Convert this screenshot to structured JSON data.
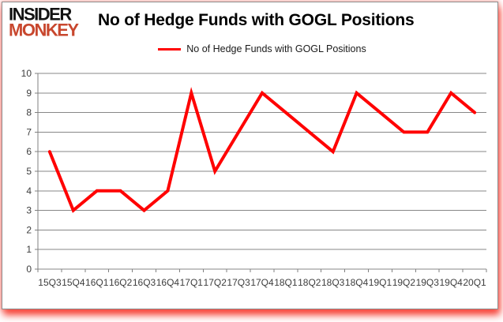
{
  "window": {
    "background": "#ffffff",
    "frame_border_color": "#8c8c8c",
    "glow_color": "#f51a0a"
  },
  "logo": {
    "line1": "INSIDER",
    "line2": "MONKEY",
    "line1_color": "#121212",
    "line2_color": "#c8472e"
  },
  "title": "No of Hedge Funds with GOGL Positions",
  "legend": {
    "label": "No of Hedge Funds with GOGL Positions",
    "marker_color": "#ff0000"
  },
  "chart_data": {
    "type": "line",
    "title": "No of Hedge Funds with GOGL Positions",
    "categories": [
      "15Q3",
      "15Q4",
      "16Q1",
      "16Q2",
      "16Q3",
      "16Q4",
      "17Q1",
      "17Q2",
      "17Q3",
      "17Q4",
      "18Q1",
      "18Q2",
      "18Q3",
      "18Q4",
      "19Q1",
      "19Q2",
      "19Q3",
      "19Q4",
      "20Q1"
    ],
    "series": [
      {
        "name": "No of Hedge Funds with GOGL Positions",
        "color": "#ff0000",
        "values": [
          6,
          3,
          4,
          4,
          3,
          4,
          9,
          5,
          7,
          9,
          8,
          7,
          6,
          9,
          8,
          7,
          7,
          9,
          8
        ]
      }
    ],
    "ylim": [
      0,
      10
    ],
    "yticks": [
      0,
      1,
      2,
      3,
      4,
      5,
      6,
      7,
      8,
      9,
      10
    ],
    "grid": true,
    "legend_position": "top",
    "grid_color": "#878787",
    "axis_color": "#808080",
    "tick_label_color": "#3d3d3d"
  }
}
